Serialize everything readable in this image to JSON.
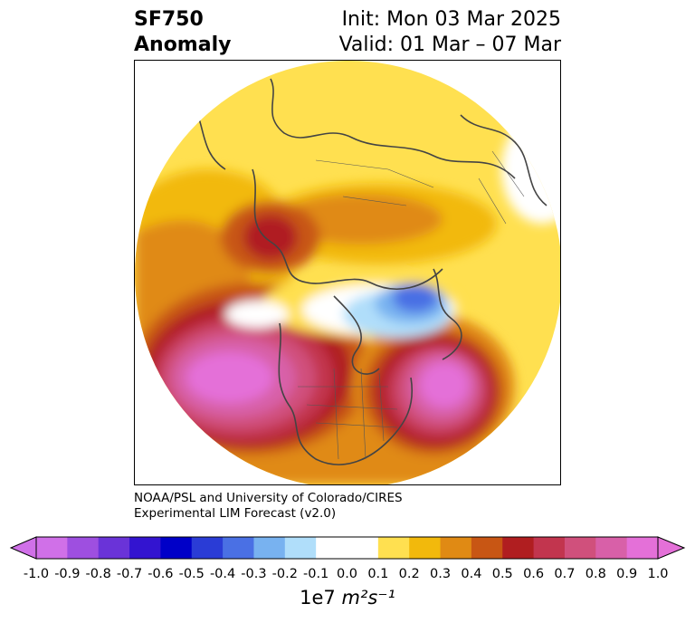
{
  "header": {
    "title_line1": "SF750",
    "title_line2": "Anomaly",
    "init_text": "Init: Mon 03 Mar 2025",
    "valid_text": "Valid: 01 Mar – 07 Mar"
  },
  "credit": {
    "line1": "NOAA/PSL and University of Colorado/CIRES",
    "line2": "Experimental LIM Forecast (v2.0)"
  },
  "colorbar": {
    "colors": [
      "#d070e8",
      "#9e4fe0",
      "#6a33d8",
      "#3314d0",
      "#0000c8",
      "#2a3cd6",
      "#4a70e4",
      "#78b2f0",
      "#b0defa",
      "#ffffff",
      "#ffffff",
      "#ffe050",
      "#f2b90c",
      "#e08a14",
      "#c85614",
      "#b01e20",
      "#c2354e",
      "#d0507c",
      "#d860a8",
      "#e470d8"
    ],
    "extend_min_color": "#d070e8",
    "extend_max_color": "#e470d8",
    "tick_labels": [
      "-1.0",
      "-0.9",
      "-0.8",
      "-0.7",
      "-0.6",
      "-0.5",
      "-0.4",
      "-0.3",
      "-0.2",
      "-0.1",
      "0.0",
      "0.1",
      "0.2",
      "0.3",
      "0.4",
      "0.5",
      "0.6",
      "0.7",
      "0.8",
      "0.9",
      "1.0"
    ],
    "units_prefix": "1e7",
    "units_text": "m²s⁻¹"
  }
}
